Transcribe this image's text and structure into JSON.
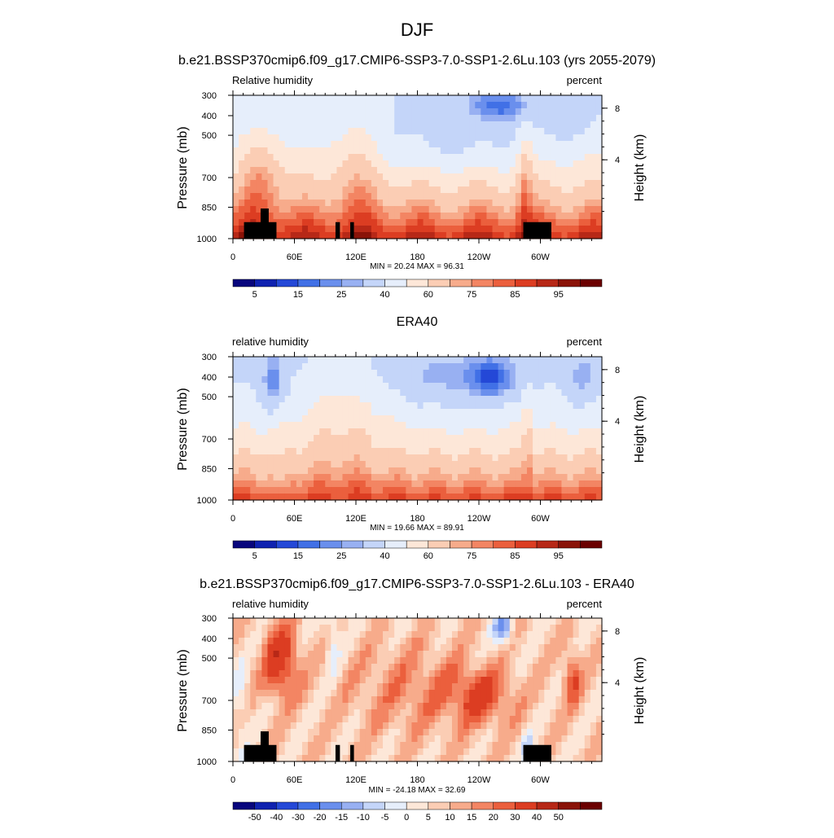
{
  "figure": {
    "title": "DJF",
    "subtitle": "b.e21.BSSP370cmip6.f09_g17.CMIP6-SSP3-7.0-SSP1-2.6Lu.103 (yrs 2055-2079)"
  },
  "colors": {
    "rh_scale": [
      "#08067d",
      "#0f22b0",
      "#2448d7",
      "#4170e6",
      "#6a8fed",
      "#98b0f2",
      "#c4d5f9",
      "#e6eefb",
      "#fde7d8",
      "#fbcdb4",
      "#f7ab8b",
      "#f38563",
      "#eb5f3d",
      "#dc3d22",
      "#b72817",
      "#8a1308",
      "#6b0000"
    ],
    "diff_scale": [
      "#08067d",
      "#0f22b0",
      "#2448d7",
      "#4170e6",
      "#6a8fed",
      "#98b0f2",
      "#c4d5f9",
      "#e6eefb",
      "#fde7d8",
      "#fbcdb4",
      "#f7ab8b",
      "#f38563",
      "#eb5f3d",
      "#dc3d22",
      "#b72817",
      "#8a1308",
      "#6b0000"
    ],
    "terrain": "#000000"
  },
  "chart_data": [
    {
      "type": "heatmap",
      "title": "",
      "left_label": "Relative humidity",
      "right_label": "percent",
      "xlabel": "",
      "ylabel": "Pressure (mb)",
      "right_ylabel": "Height (km)",
      "x_ticks": [
        "0",
        "60E",
        "120E",
        "180",
        "120W",
        "60W"
      ],
      "y_ticks": [
        "300",
        "400",
        "500",
        "700",
        "850",
        "1000"
      ],
      "right_ticks": [
        "8",
        "4"
      ],
      "stats": "MIN =  20.24  MAX =  96.31",
      "colorbar_labels": [
        "5",
        "15",
        "25",
        "40",
        "60",
        "75",
        "85",
        "95"
      ],
      "has_terrain": true,
      "field": "model"
    },
    {
      "type": "heatmap",
      "title": "ERA40",
      "left_label": "relative humidity",
      "right_label": "percent",
      "xlabel": "",
      "ylabel": "Pressure (mb)",
      "right_ylabel": "Height (km)",
      "x_ticks": [
        "0",
        "60E",
        "120E",
        "180",
        "120W",
        "60W"
      ],
      "y_ticks": [
        "300",
        "400",
        "500",
        "700",
        "850",
        "1000"
      ],
      "right_ticks": [
        "8",
        "4"
      ],
      "stats": "MIN =  19.66  MAX =  89.91",
      "colorbar_labels": [
        "5",
        "15",
        "25",
        "40",
        "60",
        "75",
        "85",
        "95"
      ],
      "has_terrain": false,
      "field": "obs"
    },
    {
      "type": "heatmap",
      "title": "b.e21.BSSP370cmip6.f09_g17.CMIP6-SSP3-7.0-SSP1-2.6Lu.103 - ERA40",
      "left_label": "relative humidity",
      "right_label": "percent",
      "xlabel": "",
      "ylabel": "Pressure (mb)",
      "right_ylabel": "Height (km)",
      "x_ticks": [
        "0",
        "60E",
        "120E",
        "180",
        "120W",
        "60W"
      ],
      "y_ticks": [
        "300",
        "400",
        "500",
        "700",
        "850",
        "1000"
      ],
      "right_ticks": [
        "8",
        "4"
      ],
      "stats": "MIN = -24.18  MAX =  32.69",
      "colorbar_labels": [
        "-50",
        "-40",
        "-30",
        "-20",
        "-15",
        "-10",
        "-5",
        "0",
        "5",
        "10",
        "15",
        "20",
        "30",
        "40",
        "50"
      ],
      "has_terrain": true,
      "field": "diff"
    }
  ]
}
